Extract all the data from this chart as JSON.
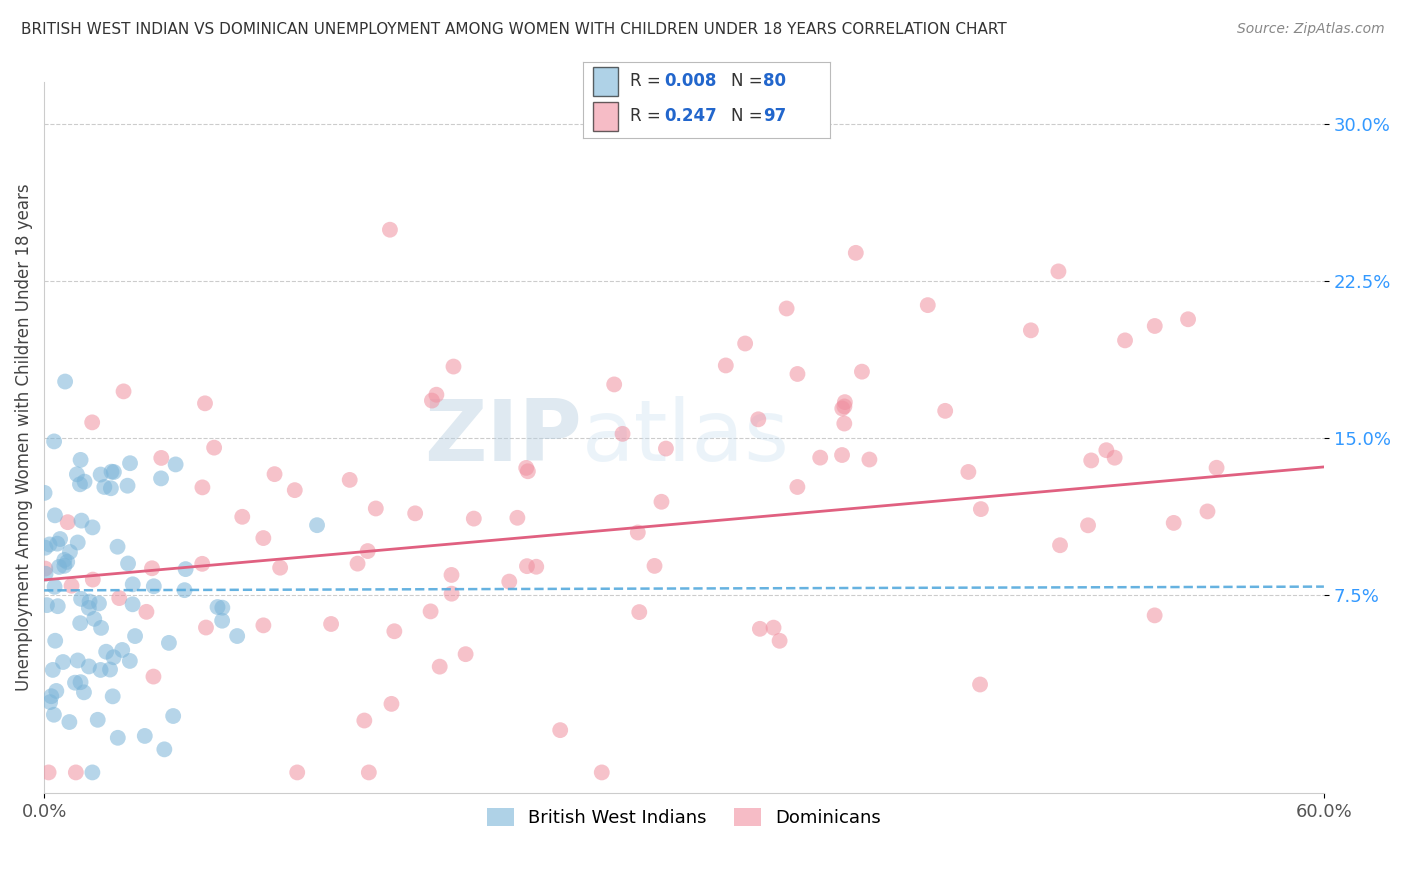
{
  "title": "BRITISH WEST INDIAN VS DOMINICAN UNEMPLOYMENT AMONG WOMEN WITH CHILDREN UNDER 18 YEARS CORRELATION CHART",
  "source": "Source: ZipAtlas.com",
  "ylabel": "Unemployment Among Women with Children Under 18 years",
  "xlim": [
    0.0,
    0.6
  ],
  "ylim": [
    -0.02,
    0.32
  ],
  "yticks": [
    0.075,
    0.15,
    0.225,
    0.3
  ],
  "ytick_labels": [
    "7.5%",
    "15.0%",
    "22.5%",
    "30.0%"
  ],
  "xticks": [
    0.0,
    0.6
  ],
  "xtick_labels": [
    "0.0%",
    "60.0%"
  ],
  "bwi_color": "#7ab4d8",
  "dom_color": "#f090a0",
  "bwi_trend_color": "#55aadd",
  "dom_trend_color": "#e06080",
  "background_color": "#ffffff",
  "title_fontsize": 11,
  "seed": 12345,
  "bwi_N": 80,
  "dom_N": 97,
  "bwi_R": 0.008,
  "dom_R": 0.247,
  "watermark_zip_color": "#b8d0e8",
  "watermark_atlas_color": "#c8ddf0",
  "legend_box_color": "#aabbcc",
  "tick_color_y": "#3399ff",
  "tick_color_x": "#555555"
}
